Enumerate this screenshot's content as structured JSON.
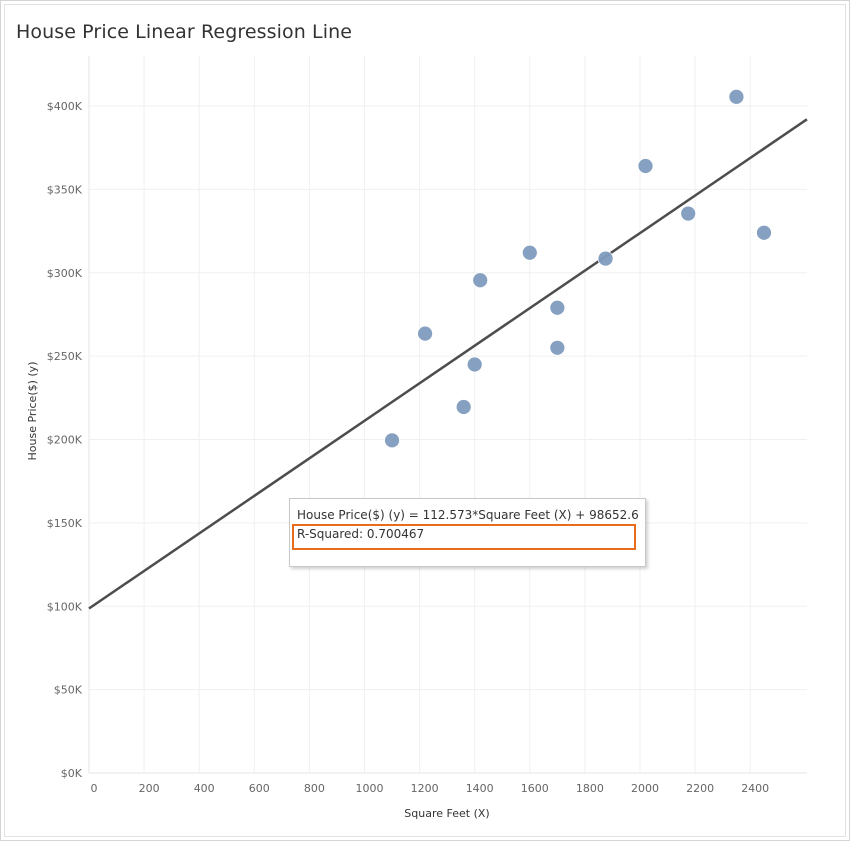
{
  "chart_data": {
    "type": "scatter",
    "title": "House Price Linear Regression Line",
    "xlabel": "Square Feet (X)",
    "ylabel": "House Price($) (y)",
    "xlim": [
      0,
      2600
    ],
    "ylim": [
      0,
      420000
    ],
    "x_ticks": [
      0,
      200,
      400,
      600,
      800,
      1000,
      1200,
      1400,
      1600,
      1800,
      2000,
      2200,
      2400
    ],
    "x_tick_labels": [
      "0",
      "200",
      "400",
      "600",
      "800",
      "1000",
      "1200",
      "1400",
      "1600",
      "1800",
      "2000",
      "2200",
      "2400"
    ],
    "y_ticks": [
      0,
      50000,
      100000,
      150000,
      200000,
      250000,
      300000,
      350000,
      400000
    ],
    "y_tick_labels": [
      "$0K",
      "$50K",
      "$100K",
      "$150K",
      "$200K",
      "$250K",
      "$300K",
      "$350K",
      "$400K"
    ],
    "grid": true,
    "series": [
      {
        "x": [
          1100,
          1220,
          1360,
          1400,
          1420,
          1600,
          1700,
          1700,
          1875,
          2020,
          2175,
          2350,
          2450
        ],
        "y": [
          199500,
          263500,
          219500,
          245000,
          295500,
          312000,
          279000,
          255000,
          308500,
          364000,
          335500,
          405500,
          324000
        ],
        "color": "#7f9bbd"
      }
    ],
    "trend_line": {
      "slope": 112.573,
      "intercept": 98652.6,
      "color": "#4d4d4d"
    },
    "tooltip": {
      "equation": "House Price($) (y) = 112.573*Square Feet (X) + 98652.6",
      "r_squared": "R-Squared: 0.700467"
    },
    "highlight_color": "#e86c1a"
  }
}
